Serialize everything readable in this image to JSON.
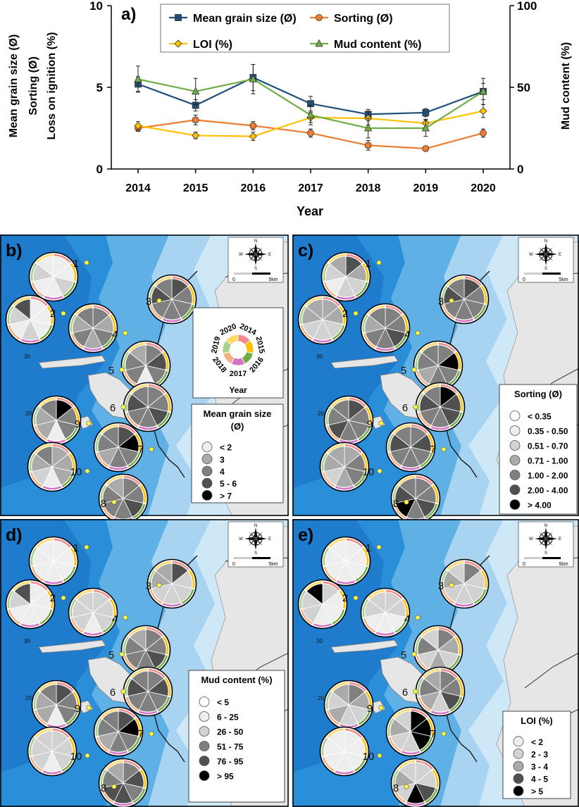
{
  "chart_data": [
    {
      "type": "line",
      "panel_label": "a)",
      "x": [
        2014,
        2015,
        2016,
        2017,
        2018,
        2019,
        2020
      ],
      "xlabel": "Year",
      "ylabel_left": [
        "Mean grain size (Ø)",
        "Sorting (Ø)",
        "Loss on ignition (%)"
      ],
      "ylabel_right": "Mud content (%)",
      "ylim_left": [
        0,
        10
      ],
      "ylim_right": [
        0,
        100
      ],
      "yticks_left": [
        "0",
        "5",
        "10"
      ],
      "yticks_right": [
        "0",
        "50",
        "100"
      ],
      "legend_placement": "top-center",
      "series": [
        {
          "name": "Mean grain size (Ø)",
          "axis": "left",
          "color": "#1f4e79",
          "marker": "square",
          "values": [
            5.2,
            3.9,
            5.6,
            4.0,
            3.35,
            3.45,
            4.75
          ],
          "err": [
            0.45,
            0.35,
            0.8,
            0.45,
            0.3,
            0.25,
            0.5
          ]
        },
        {
          "name": "Sorting (Ø)",
          "axis": "left",
          "color": "#ed7d31",
          "marker": "circle",
          "values": [
            2.5,
            3.0,
            2.65,
            2.2,
            1.45,
            1.25,
            2.2
          ],
          "err": [
            0.2,
            0.3,
            0.25,
            0.25,
            0.3,
            0.1,
            0.25
          ]
        },
        {
          "name": "LOI (%)",
          "axis": "left",
          "color": "#ffc000",
          "marker": "diamond",
          "values": [
            2.65,
            2.05,
            2.0,
            3.15,
            3.1,
            2.8,
            3.55
          ],
          "err": [
            0.25,
            0.2,
            0.25,
            0.3,
            0.4,
            0.25,
            0.4
          ]
        },
        {
          "name": "Mud content (%)",
          "axis": "right",
          "color": "#70ad47",
          "marker": "triangle",
          "values": [
            55,
            47.5,
            55,
            33,
            25,
            25,
            47.5
          ],
          "err": [
            8,
            8,
            9,
            6,
            6,
            5,
            8
          ]
        }
      ]
    }
  ],
  "year_ring": {
    "years": [
      "2014",
      "2015",
      "2016",
      "2017",
      "2018",
      "2019",
      "2020"
    ],
    "colors": [
      "#f28b8b",
      "#ffc000",
      "#70ad47",
      "#d472c8",
      "#f4b183",
      "#a9d18e",
      "#ffd966"
    ],
    "title": "Year"
  },
  "compass": {
    "n": "N",
    "s": "S",
    "e": "E",
    "w": "W",
    "scale_zero": "0",
    "scale_label": "5km"
  },
  "map_depth_labels": [
    "30",
    "20"
  ],
  "stations": [
    "1",
    "2",
    "3",
    "4",
    "5",
    "6",
    "7",
    "8",
    "9",
    "10"
  ],
  "shades": [
    "#ffffff",
    "#eeeeee",
    "#d2d2d2",
    "#aaaaaa",
    "#808080",
    "#505050",
    "#000000"
  ],
  "maps": [
    {
      "label": "b)",
      "legend_title_lines": [
        "Mean grain size",
        "(Ø)"
      ],
      "legend_items": [
        {
          "label": "< 2",
          "shade": 1
        },
        {
          "label": "3",
          "shade": 3
        },
        {
          "label": "4",
          "shade": 4
        },
        {
          "label": "5 - 6",
          "shade": 5
        },
        {
          "label": "> 7",
          "shade": 6
        }
      ],
      "pies": [
        [
          1,
          1,
          2,
          1,
          1,
          2,
          1
        ],
        [
          1,
          1,
          1,
          2,
          1,
          2,
          5
        ],
        [
          5,
          4,
          4,
          4,
          4,
          5,
          4
        ],
        [
          4,
          3,
          4,
          3,
          4,
          3,
          4
        ],
        [
          4,
          5,
          4,
          1,
          4,
          4,
          3
        ],
        [
          4,
          4,
          5,
          4,
          4,
          5,
          4
        ],
        [
          5,
          6,
          4,
          4,
          3,
          4,
          4
        ],
        [
          4,
          4,
          5,
          4,
          4,
          4,
          3
        ],
        [
          6,
          4,
          4,
          1,
          3,
          3,
          4
        ],
        [
          3,
          3,
          3,
          1,
          2,
          3,
          4
        ]
      ]
    },
    {
      "label": "c)",
      "legend_title_lines": [
        "Sorting (Ø)"
      ],
      "legend_items": [
        {
          "label": "< 0.35",
          "shade": 0
        },
        {
          "label": "0.35 - 0.50",
          "shade": 1
        },
        {
          "label": "0.51 - 0.70",
          "shade": 2
        },
        {
          "label": "0.71 - 1.00",
          "shade": 3
        },
        {
          "label": "1.00 - 2.00",
          "shade": 4
        },
        {
          "label": "2.00 - 4.00",
          "shade": 5
        },
        {
          "label": "> 4.00",
          "shade": 6
        }
      ],
      "pies": [
        [
          5,
          3,
          2,
          2,
          1,
          2,
          3
        ],
        [
          3,
          3,
          2,
          2,
          2,
          3,
          3
        ],
        [
          5,
          4,
          4,
          4,
          4,
          5,
          4
        ],
        [
          4,
          4,
          5,
          4,
          4,
          3,
          4
        ],
        [
          4,
          6,
          4,
          4,
          3,
          4,
          4
        ],
        [
          6,
          5,
          5,
          4,
          4,
          5,
          4
        ],
        [
          4,
          5,
          4,
          4,
          4,
          5,
          4
        ],
        [
          4,
          4,
          5,
          4,
          6,
          5,
          4
        ],
        [
          5,
          4,
          4,
          4,
          5,
          4,
          4
        ],
        [
          3,
          4,
          4,
          3,
          2,
          3,
          3
        ]
      ]
    },
    {
      "label": "d)",
      "legend_title_lines": [
        "Mud content (%)"
      ],
      "legend_items": [
        {
          "label": "< 5",
          "shade": 0
        },
        {
          "label": "6 - 25",
          "shade": 1
        },
        {
          "label": "26 - 50",
          "shade": 2
        },
        {
          "label": "51 - 75",
          "shade": 4
        },
        {
          "label": "76 - 95",
          "shade": 5
        },
        {
          "label": "> 95",
          "shade": 6
        }
      ],
      "pies": [
        [
          1,
          1,
          1,
          1,
          1,
          1,
          1
        ],
        [
          1,
          1,
          1,
          1,
          1,
          2,
          5
        ],
        [
          5,
          2,
          2,
          2,
          2,
          3,
          3
        ],
        [
          2,
          2,
          2,
          1,
          2,
          2,
          2
        ],
        [
          4,
          4,
          5,
          4,
          4,
          4,
          3
        ],
        [
          4,
          5,
          4,
          4,
          4,
          5,
          4
        ],
        [
          5,
          6,
          4,
          4,
          3,
          4,
          4
        ],
        [
          4,
          5,
          4,
          5,
          5,
          4,
          3
        ],
        [
          5,
          4,
          4,
          1,
          3,
          3,
          4
        ],
        [
          2,
          2,
          2,
          1,
          2,
          2,
          2
        ]
      ]
    },
    {
      "label": "e)",
      "legend_title_lines": [
        "LOI (%)"
      ],
      "legend_items": [
        {
          "label": "< 2",
          "shade": 1
        },
        {
          "label": "2 - 3",
          "shade": 2
        },
        {
          "label": "3 - 4",
          "shade": 3
        },
        {
          "label": "4 - 5",
          "shade": 5
        },
        {
          "label": "> 5",
          "shade": 6
        }
      ],
      "pies": [
        [
          1,
          1,
          1,
          1,
          1,
          1,
          1
        ],
        [
          2,
          1,
          1,
          1,
          2,
          2,
          6
        ],
        [
          4,
          2,
          2,
          2,
          2,
          3,
          2
        ],
        [
          2,
          2,
          1,
          1,
          1,
          2,
          2
        ],
        [
          4,
          3,
          2,
          3,
          2,
          4,
          2
        ],
        [
          4,
          4,
          5,
          2,
          3,
          4,
          3
        ],
        [
          6,
          6,
          6,
          2,
          2,
          3,
          2
        ],
        [
          2,
          2,
          5,
          6,
          2,
          3,
          2
        ],
        [
          4,
          3,
          2,
          2,
          3,
          2,
          3
        ],
        [
          1,
          1,
          1,
          1,
          1,
          1,
          1
        ]
      ]
    }
  ]
}
